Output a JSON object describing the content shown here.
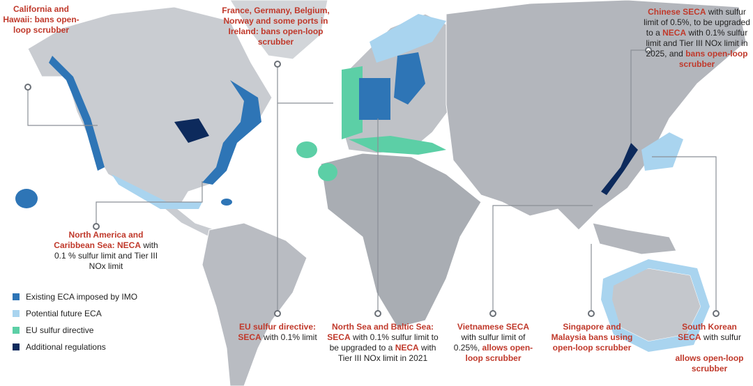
{
  "legend": [
    {
      "label": "Existing ECA imposed by IMO",
      "color": "#2e75b6"
    },
    {
      "label": "Potential future ECA",
      "color": "#a9d4ef"
    },
    {
      "label": "EU sulfur directive",
      "color": "#5ccfa6"
    },
    {
      "label": "Additional regulations",
      "color": "#0d2a5c"
    }
  ],
  "callouts": [
    {
      "parts": [
        {
          "text": "California and Hawaii: bans open-loop scrubber",
          "red": true
        }
      ]
    },
    {
      "parts": [
        {
          "text": "France, Germany, Belgium, Norway and some ports in Ireland: bans open-loop scrubber",
          "red": true
        }
      ]
    },
    {
      "parts": [
        {
          "text": "Chinese SECA",
          "red": true
        },
        {
          "text": " with sulfur limit of 0.5%, to be upgraded to a ",
          "red": false
        },
        {
          "text": "NECA",
          "red": true
        },
        {
          "text": " with 0.1% sulfur limit and Tier III NOx limit in 2025, and ",
          "red": false
        },
        {
          "text": "bans open-loop scrubber",
          "red": true
        }
      ]
    },
    {
      "parts": [
        {
          "text": "North America and Caribbean Sea: NECA",
          "red": true
        },
        {
          "text": " with 0.1 % sulfur limit and Tier III NOx limit",
          "red": false
        }
      ]
    },
    {
      "parts": [
        {
          "text": "EU sulfur directive: SECA",
          "red": true
        },
        {
          "text": " with 0.1% limit",
          "red": false
        }
      ]
    },
    {
      "parts": [
        {
          "text": "North Sea and Baltic Sea: SECA",
          "red": true
        },
        {
          "text": " with 0.1% sulfur limit to be upgraded to a ",
          "red": false
        },
        {
          "text": "NECA",
          "red": true
        },
        {
          "text": " with Tier III NOx limit in 2021",
          "red": false
        }
      ]
    },
    {
      "parts": [
        {
          "text": "Vietnamese SECA",
          "red": true
        },
        {
          "text": " with sulfur limit of 0.25%, ",
          "red": false
        },
        {
          "text": "allows open-loop scrubber",
          "red": true
        }
      ]
    },
    {
      "parts": [
        {
          "text": "Singapore and Malaysia bans using open-loop scrubber",
          "red": true
        }
      ]
    },
    {
      "parts": [
        {
          "text": "South Korean SECA",
          "red": true
        },
        {
          "text": " with sulfur",
          "red": false
        },
        {
          "text": "allows open-loop scrubber",
          "red": true
        }
      ]
    }
  ]
}
